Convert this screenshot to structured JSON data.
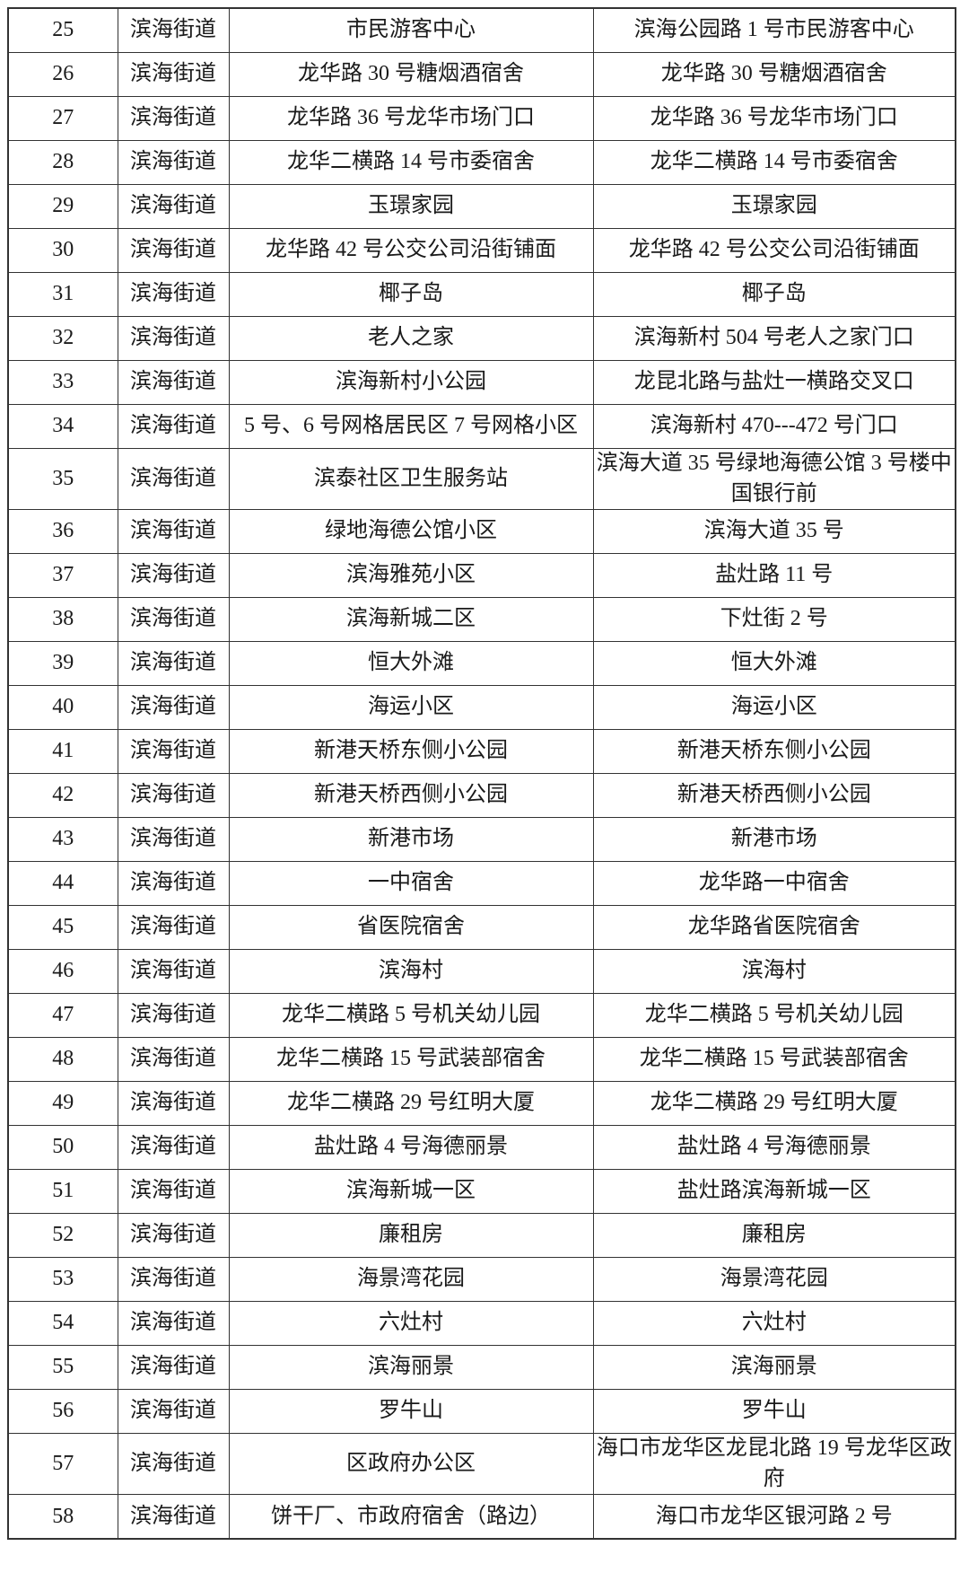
{
  "page": {
    "background": "#ffffff"
  },
  "table": {
    "border_color": "#333333",
    "text_color": "#1a1a1a",
    "rows": [
      {
        "no": "25",
        "street": "滨海街道",
        "name": "市民游客中心",
        "address": "滨海公园路 1 号市民游客中心"
      },
      {
        "no": "26",
        "street": "滨海街道",
        "name": "龙华路 30 号糖烟酒宿舍",
        "address": "龙华路 30 号糖烟酒宿舍"
      },
      {
        "no": "27",
        "street": "滨海街道",
        "name": "龙华路 36 号龙华市场门口",
        "address": "龙华路 36 号龙华市场门口"
      },
      {
        "no": "28",
        "street": "滨海街道",
        "name": "龙华二横路 14 号市委宿舍",
        "address": "龙华二横路 14 号市委宿舍"
      },
      {
        "no": "29",
        "street": "滨海街道",
        "name": "玉璟家园",
        "address": "玉璟家园"
      },
      {
        "no": "30",
        "street": "滨海街道",
        "name": "龙华路 42 号公交公司沿街铺面",
        "address": "龙华路 42 号公交公司沿街铺面"
      },
      {
        "no": "31",
        "street": "滨海街道",
        "name": "椰子岛",
        "address": "椰子岛"
      },
      {
        "no": "32",
        "street": "滨海街道",
        "name": "老人之家",
        "address": "滨海新村 504 号老人之家门口"
      },
      {
        "no": "33",
        "street": "滨海街道",
        "name": "滨海新村小公园",
        "address": "龙昆北路与盐灶一横路交叉口"
      },
      {
        "no": "34",
        "street": "滨海街道",
        "name": "5 号、6 号网格居民区 7 号网格小区",
        "address": "滨海新村 470---472 号门口"
      },
      {
        "no": "35",
        "street": "滨海街道",
        "name": "滨泰社区卫生服务站",
        "address": "滨海大道 35 号绿地海德公馆 3 号楼中国银行前"
      },
      {
        "no": "36",
        "street": "滨海街道",
        "name": "绿地海德公馆小区",
        "address": "滨海大道 35 号"
      },
      {
        "no": "37",
        "street": "滨海街道",
        "name": "滨海雅苑小区",
        "address": "盐灶路 11 号"
      },
      {
        "no": "38",
        "street": "滨海街道",
        "name": "滨海新城二区",
        "address": "下灶街 2 号"
      },
      {
        "no": "39",
        "street": "滨海街道",
        "name": "恒大外滩",
        "address": "恒大外滩"
      },
      {
        "no": "40",
        "street": "滨海街道",
        "name": "海运小区",
        "address": "海运小区"
      },
      {
        "no": "41",
        "street": "滨海街道",
        "name": "新港天桥东侧小公园",
        "address": "新港天桥东侧小公园"
      },
      {
        "no": "42",
        "street": "滨海街道",
        "name": "新港天桥西侧小公园",
        "address": "新港天桥西侧小公园"
      },
      {
        "no": "43",
        "street": "滨海街道",
        "name": "新港市场",
        "address": "新港市场"
      },
      {
        "no": "44",
        "street": "滨海街道",
        "name": "一中宿舍",
        "address": "龙华路一中宿舍"
      },
      {
        "no": "45",
        "street": "滨海街道",
        "name": "省医院宿舍",
        "address": "龙华路省医院宿舍"
      },
      {
        "no": "46",
        "street": "滨海街道",
        "name": "滨海村",
        "address": "滨海村"
      },
      {
        "no": "47",
        "street": "滨海街道",
        "name": "龙华二横路 5 号机关幼儿园",
        "address": "龙华二横路 5 号机关幼儿园"
      },
      {
        "no": "48",
        "street": "滨海街道",
        "name": "龙华二横路 15 号武装部宿舍",
        "address": "龙华二横路 15 号武装部宿舍"
      },
      {
        "no": "49",
        "street": "滨海街道",
        "name": "龙华二横路 29 号红明大厦",
        "address": "龙华二横路 29 号红明大厦"
      },
      {
        "no": "50",
        "street": "滨海街道",
        "name": "盐灶路 4 号海德丽景",
        "address": "盐灶路 4 号海德丽景"
      },
      {
        "no": "51",
        "street": "滨海街道",
        "name": "滨海新城一区",
        "address": "盐灶路滨海新城一区"
      },
      {
        "no": "52",
        "street": "滨海街道",
        "name": "廉租房",
        "address": "廉租房"
      },
      {
        "no": "53",
        "street": "滨海街道",
        "name": "海景湾花园",
        "address": "海景湾花园"
      },
      {
        "no": "54",
        "street": "滨海街道",
        "name": "六灶村",
        "address": "六灶村"
      },
      {
        "no": "55",
        "street": "滨海街道",
        "name": "滨海丽景",
        "address": "滨海丽景"
      },
      {
        "no": "56",
        "street": "滨海街道",
        "name": "罗牛山",
        "address": "罗牛山"
      },
      {
        "no": "57",
        "street": "滨海街道",
        "name": "区政府办公区",
        "address": "海口市龙华区龙昆北路 19 号龙华区政府"
      },
      {
        "no": "58",
        "street": "滨海街道",
        "name": "饼干厂、市政府宿舍（路边）",
        "address": "海口市龙华区银河路 2 号"
      }
    ]
  }
}
